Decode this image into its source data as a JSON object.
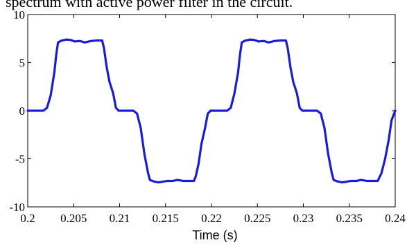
{
  "caption": "spectrum with active power filter in the circuit.",
  "colors": {
    "line": "#1a1adb",
    "axis": "#000000",
    "background": "#ffffff"
  },
  "chart_data": {
    "type": "line",
    "title": "",
    "xlabel": "Time (s)",
    "ylabel": "",
    "xlim": [
      0.2,
      0.24
    ],
    "ylim": [
      -10,
      10
    ],
    "grid": false,
    "xticks": [
      0.2,
      0.205,
      0.21,
      0.215,
      0.22,
      0.225,
      0.23,
      0.235,
      0.24
    ],
    "xtick_labels": [
      "0.2",
      "0.205",
      "0.21",
      "0.215",
      "0.22",
      "0.225",
      "0.23",
      "0.235",
      "0.24"
    ],
    "yticks": [
      -10,
      -5,
      0,
      5,
      10
    ],
    "ytick_labels": [
      "-10",
      "-5",
      "0",
      "5",
      "10"
    ],
    "series": [
      {
        "x": [
          0.2,
          0.2017,
          0.2021,
          0.2025,
          0.2029,
          0.2031,
          0.2033,
          0.2037,
          0.2042,
          0.2047,
          0.2051,
          0.2057,
          0.2062,
          0.2069,
          0.2075,
          0.2081,
          0.2083,
          0.2086,
          0.2089,
          0.2093,
          0.2096,
          0.2099,
          0.2115,
          0.2119,
          0.2123,
          0.2127,
          0.2131,
          0.2133,
          0.2137,
          0.2142,
          0.2146,
          0.2152,
          0.2158,
          0.2163,
          0.2169,
          0.2175,
          0.2181,
          0.2183,
          0.2186,
          0.2189,
          0.2193,
          0.2196,
          0.2199,
          0.2217,
          0.2221,
          0.2225,
          0.2229,
          0.2231,
          0.2233,
          0.2237,
          0.2242,
          0.2247,
          0.2251,
          0.2257,
          0.2262,
          0.2269,
          0.2275,
          0.2281,
          0.2283,
          0.2286,
          0.2289,
          0.2293,
          0.2296,
          0.2299,
          0.2315,
          0.2319,
          0.2323,
          0.2327,
          0.2331,
          0.2333,
          0.2337,
          0.2342,
          0.2346,
          0.2352,
          0.2358,
          0.2363,
          0.2369,
          0.2375,
          0.2381,
          0.2385,
          0.2389,
          0.2393,
          0.2396,
          0.24
        ],
        "y": [
          0,
          0,
          0.3,
          1.6,
          4.0,
          5.8,
          7.1,
          7.3,
          7.4,
          7.35,
          7.2,
          7.25,
          7.1,
          7.25,
          7.3,
          7.3,
          6.5,
          4.5,
          3.0,
          1.8,
          0.3,
          0,
          0,
          -0.3,
          -1.8,
          -4.5,
          -6.5,
          -7.2,
          -7.35,
          -7.45,
          -7.4,
          -7.3,
          -7.3,
          -7.2,
          -7.3,
          -7.3,
          -7.3,
          -6.8,
          -5.5,
          -3.5,
          -1.8,
          -0.3,
          0,
          0,
          0.3,
          1.8,
          4.0,
          5.8,
          7.1,
          7.3,
          7.4,
          7.35,
          7.2,
          7.25,
          7.1,
          7.25,
          7.3,
          7.3,
          6.5,
          4.5,
          3.0,
          1.8,
          0.3,
          0,
          0,
          -0.3,
          -1.8,
          -4.5,
          -6.5,
          -7.2,
          -7.35,
          -7.45,
          -7.4,
          -7.3,
          -7.3,
          -7.2,
          -7.3,
          -7.3,
          -7.3,
          -6.5,
          -5.0,
          -3.0,
          -1.0,
          0
        ]
      }
    ]
  }
}
